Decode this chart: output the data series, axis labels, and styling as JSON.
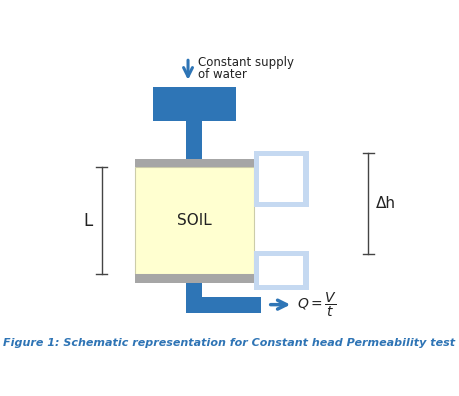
{
  "title": "Figure 1: Schematic representation for Constant head Permeability test",
  "title_color": "#2E74B5",
  "title_fontsize": 8.0,
  "bg_color": "#ffffff",
  "blue_dark": "#2E75B6",
  "blue_light": "#C5D9F1",
  "gray": "#A6A6A6",
  "soil_fill": "#FFFFD0",
  "soil_text": "SOIL",
  "delta_h_text": "Δh",
  "L_text": "L",
  "supply_text_line1": "Constant supply",
  "supply_text_line2": "of water"
}
